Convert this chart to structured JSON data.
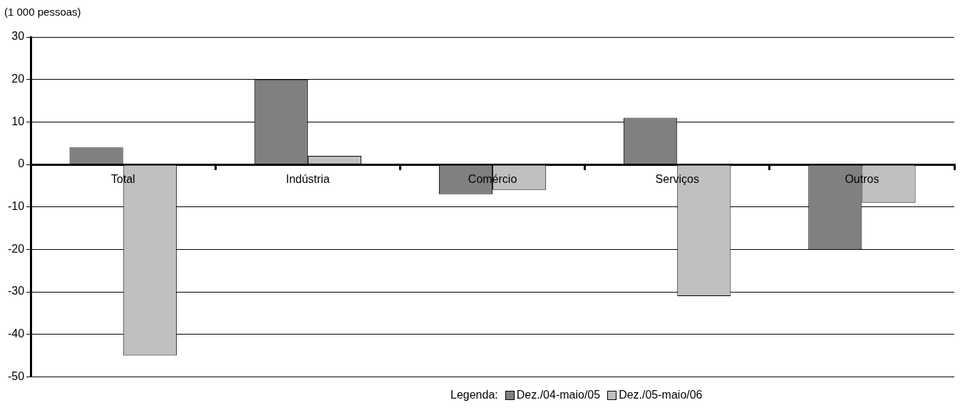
{
  "chart_data": {
    "type": "bar",
    "ylabel": "(1 000 pessoas)",
    "legend_title": "Legenda:",
    "categories": [
      "Total",
      "Indústria",
      "Comércio",
      "Serviços",
      "Outros"
    ],
    "series": [
      {
        "name": "Dez./04-maio/05",
        "color": "#808080",
        "values": [
          4,
          20,
          -7,
          11,
          -20
        ]
      },
      {
        "name": "Dez./05-maio/06",
        "color": "#c0c0c0",
        "values": [
          -45,
          2,
          -6,
          -31,
          -9
        ]
      }
    ],
    "ylim": [
      -50,
      30
    ],
    "yticks": [
      -50,
      -40,
      -30,
      -20,
      -10,
      0,
      10,
      20,
      30
    ],
    "grid": "y",
    "legend": "bottom"
  }
}
